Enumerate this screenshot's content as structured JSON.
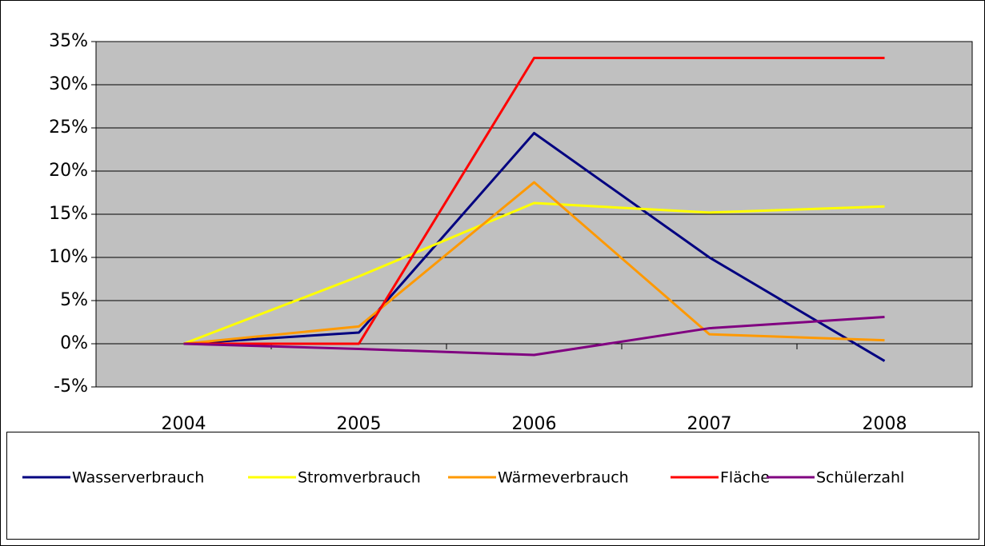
{
  "chart_data": {
    "type": "line",
    "categories": [
      "2004",
      "2005",
      "2006",
      "2007",
      "2008"
    ],
    "series": [
      {
        "name": "Wasserverbrauch",
        "color": "#000080",
        "values": [
          0,
          1.3,
          24.4,
          10,
          -2
        ]
      },
      {
        "name": "Stromverbrauch",
        "color": "#ffff00",
        "values": [
          0,
          7.8,
          16.3,
          15.2,
          15.9
        ]
      },
      {
        "name": "Wärmeverbrauch",
        "color": "#ff9900",
        "values": [
          0,
          2,
          18.7,
          1.1,
          0.4
        ]
      },
      {
        "name": "Fläche",
        "color": "#ff0000",
        "values": [
          0,
          0,
          33.1,
          33.1,
          33.1
        ]
      },
      {
        "name": "Schülerzahl",
        "color": "#800080",
        "values": [
          0,
          -0.6,
          -1.3,
          1.8,
          3.1
        ]
      }
    ],
    "ylim": [
      -5,
      35
    ],
    "yticks": [
      {
        "value": -5,
        "label": "-5%"
      },
      {
        "value": 0,
        "label": "0%"
      },
      {
        "value": 5,
        "label": "5%"
      },
      {
        "value": 10,
        "label": "10%"
      },
      {
        "value": 15,
        "label": "15%"
      },
      {
        "value": 20,
        "label": "20%"
      },
      {
        "value": 25,
        "label": "25%"
      },
      {
        "value": 30,
        "label": "30%"
      },
      {
        "value": 35,
        "label": "35%"
      }
    ],
    "grid": true,
    "plot_background": "#c0c0c0",
    "legend": "bottom"
  }
}
